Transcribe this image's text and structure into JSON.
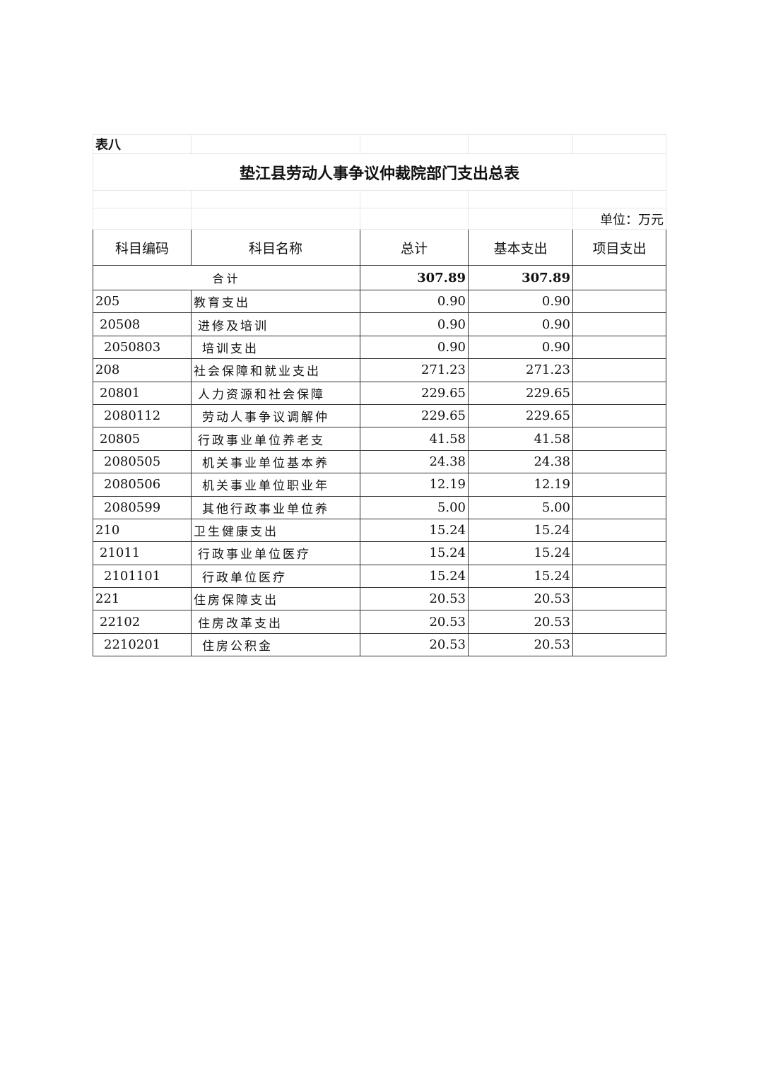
{
  "table_label": "表八",
  "title": "垫江县劳动人事争议仲裁院部门支出总表",
  "unit": "单位：万元",
  "headers": [
    "科目编码",
    "科目名称",
    "总计",
    "基本支出",
    "项目支出"
  ],
  "total": {
    "label": "合计",
    "total": "307.89",
    "basic": "307.89",
    "project": ""
  },
  "rows": [
    {
      "code": "205",
      "name": "教育支出",
      "total": "0.90",
      "basic": "0.90",
      "project": "",
      "level": 0
    },
    {
      "code": "20508",
      "name": "进修及培训",
      "total": "0.90",
      "basic": "0.90",
      "project": "",
      "level": 1
    },
    {
      "code": "2050803",
      "name": "培训支出",
      "total": "0.90",
      "basic": "0.90",
      "project": "",
      "level": 2
    },
    {
      "code": "208",
      "name": "社会保障和就业支出",
      "total": "271.23",
      "basic": "271.23",
      "project": "",
      "level": 0
    },
    {
      "code": "20801",
      "name": "人力资源和社会保障",
      "total": "229.65",
      "basic": "229.65",
      "project": "",
      "level": 1
    },
    {
      "code": "2080112",
      "name": "劳动人事争议调解仲",
      "total": "229.65",
      "basic": "229.65",
      "project": "",
      "level": 2
    },
    {
      "code": "20805",
      "name": "行政事业单位养老支",
      "total": "41.58",
      "basic": "41.58",
      "project": "",
      "level": 1
    },
    {
      "code": "2080505",
      "name": "机关事业单位基本养",
      "total": "24.38",
      "basic": "24.38",
      "project": "",
      "level": 2
    },
    {
      "code": "2080506",
      "name": "机关事业单位职业年",
      "total": "12.19",
      "basic": "12.19",
      "project": "",
      "level": 2
    },
    {
      "code": "2080599",
      "name": "其他行政事业单位养",
      "total": "5.00",
      "basic": "5.00",
      "project": "",
      "level": 2
    },
    {
      "code": "210",
      "name": "卫生健康支出",
      "total": "15.24",
      "basic": "15.24",
      "project": "",
      "level": 0
    },
    {
      "code": "21011",
      "name": "行政事业单位医疗",
      "total": "15.24",
      "basic": "15.24",
      "project": "",
      "level": 1
    },
    {
      "code": "2101101",
      "name": "行政单位医疗",
      "total": "15.24",
      "basic": "15.24",
      "project": "",
      "level": 2
    },
    {
      "code": "221",
      "name": "住房保障支出",
      "total": "20.53",
      "basic": "20.53",
      "project": "",
      "level": 0
    },
    {
      "code": "22102",
      "name": "住房改革支出",
      "total": "20.53",
      "basic": "20.53",
      "project": "",
      "level": 1
    },
    {
      "code": "2210201",
      "name": "住房公积金",
      "total": "20.53",
      "basic": "20.53",
      "project": "",
      "level": 2
    }
  ]
}
